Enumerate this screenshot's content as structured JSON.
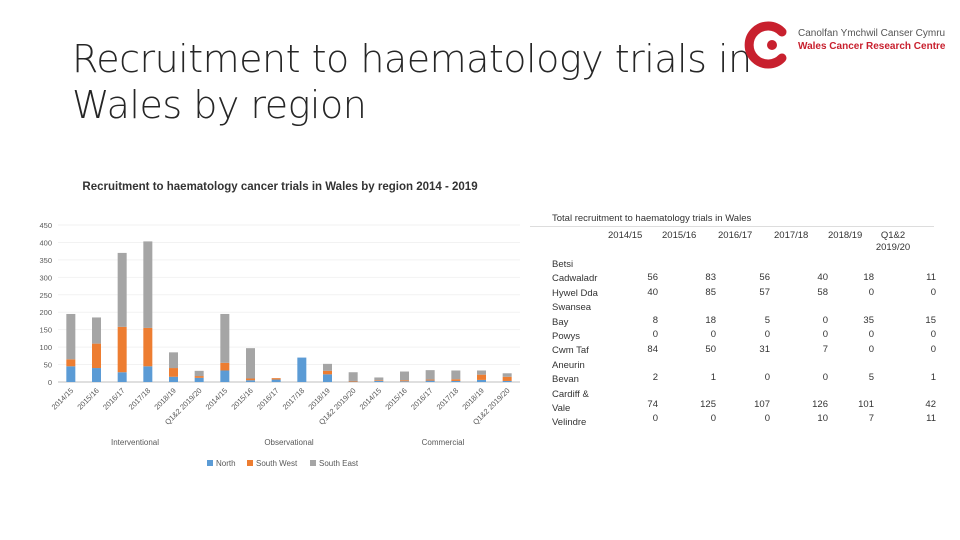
{
  "slide_title": "Recruitment to haematology trials in Wales by region",
  "logo": {
    "line1": "Canolfan Ymchwil Canser Cymru",
    "line2": "Wales Cancer Research Centre"
  },
  "colors": {
    "north": "#5b9bd5",
    "south_west": "#ed7d31",
    "south_east": "#a5a5a5",
    "logo_red": "#c8202e"
  },
  "chart_data": {
    "type": "bar",
    "stacked": true,
    "title": "Recruitment to haematology cancer trials in Wales by region 2014 - 2019",
    "ylim": [
      0,
      450
    ],
    "yticks": [
      0,
      50,
      100,
      150,
      200,
      250,
      300,
      350,
      400,
      450
    ],
    "groups": [
      "Interventional",
      "Observational",
      "Commercial"
    ],
    "categories": [
      "2014/15",
      "2015/16",
      "2016/17",
      "2017/18",
      "2018/19",
      "Q1&2 2019/20"
    ],
    "legend": [
      "North",
      "South West",
      "South East"
    ],
    "legend_position": "bottom",
    "series": [
      {
        "name": "North",
        "groups": [
          [
            45,
            40,
            28,
            45,
            15,
            12
          ],
          [
            33,
            5,
            7,
            70,
            22,
            1
          ],
          [
            3,
            2,
            4,
            3,
            6,
            3
          ]
        ]
      },
      {
        "name": "South West",
        "groups": [
          [
            20,
            70,
            130,
            110,
            25,
            5
          ],
          [
            22,
            5,
            4,
            0,
            10,
            2
          ],
          [
            2,
            3,
            3,
            5,
            15,
            12
          ]
        ]
      },
      {
        "name": "South East",
        "groups": [
          [
            130,
            75,
            212,
            248,
            45,
            15
          ],
          [
            140,
            87,
            0,
            0,
            20,
            25
          ],
          [
            8,
            25,
            27,
            25,
            12,
            10
          ]
        ]
      }
    ]
  },
  "table": {
    "title": "Total recruitment to haematology trials in Wales",
    "columns": [
      "2014/15",
      "2015/16",
      "2016/17",
      "2017/18",
      "2018/19",
      "Q1&2 2019/20"
    ],
    "row_label_lines": [
      "Betsi",
      "Cadwaladr",
      "Hywel Dda",
      "Swansea",
      "Bay",
      "Powys",
      "Cwm Taf",
      "Aneurin",
      "Bevan",
      "Cardiff &",
      "Vale",
      "Velindre"
    ],
    "rows": [
      [
        "56",
        "83",
        "56",
        "40",
        "18",
        "11"
      ],
      [
        "40",
        "85",
        "57",
        "58",
        "0",
        "0"
      ],
      [
        "8",
        "18",
        "5",
        "0",
        "35",
        "15"
      ],
      [
        "0",
        "0",
        "0",
        "0",
        "0",
        "0"
      ],
      [
        "84",
        "50",
        "31",
        "7",
        "0",
        "0"
      ],
      [
        "2",
        "1",
        "0",
        "0",
        "5",
        "1"
      ],
      [
        "74",
        "125",
        "107",
        "126",
        "101",
        "42"
      ],
      [
        "0",
        "0",
        "0",
        "10",
        "7",
        "11"
      ]
    ]
  }
}
